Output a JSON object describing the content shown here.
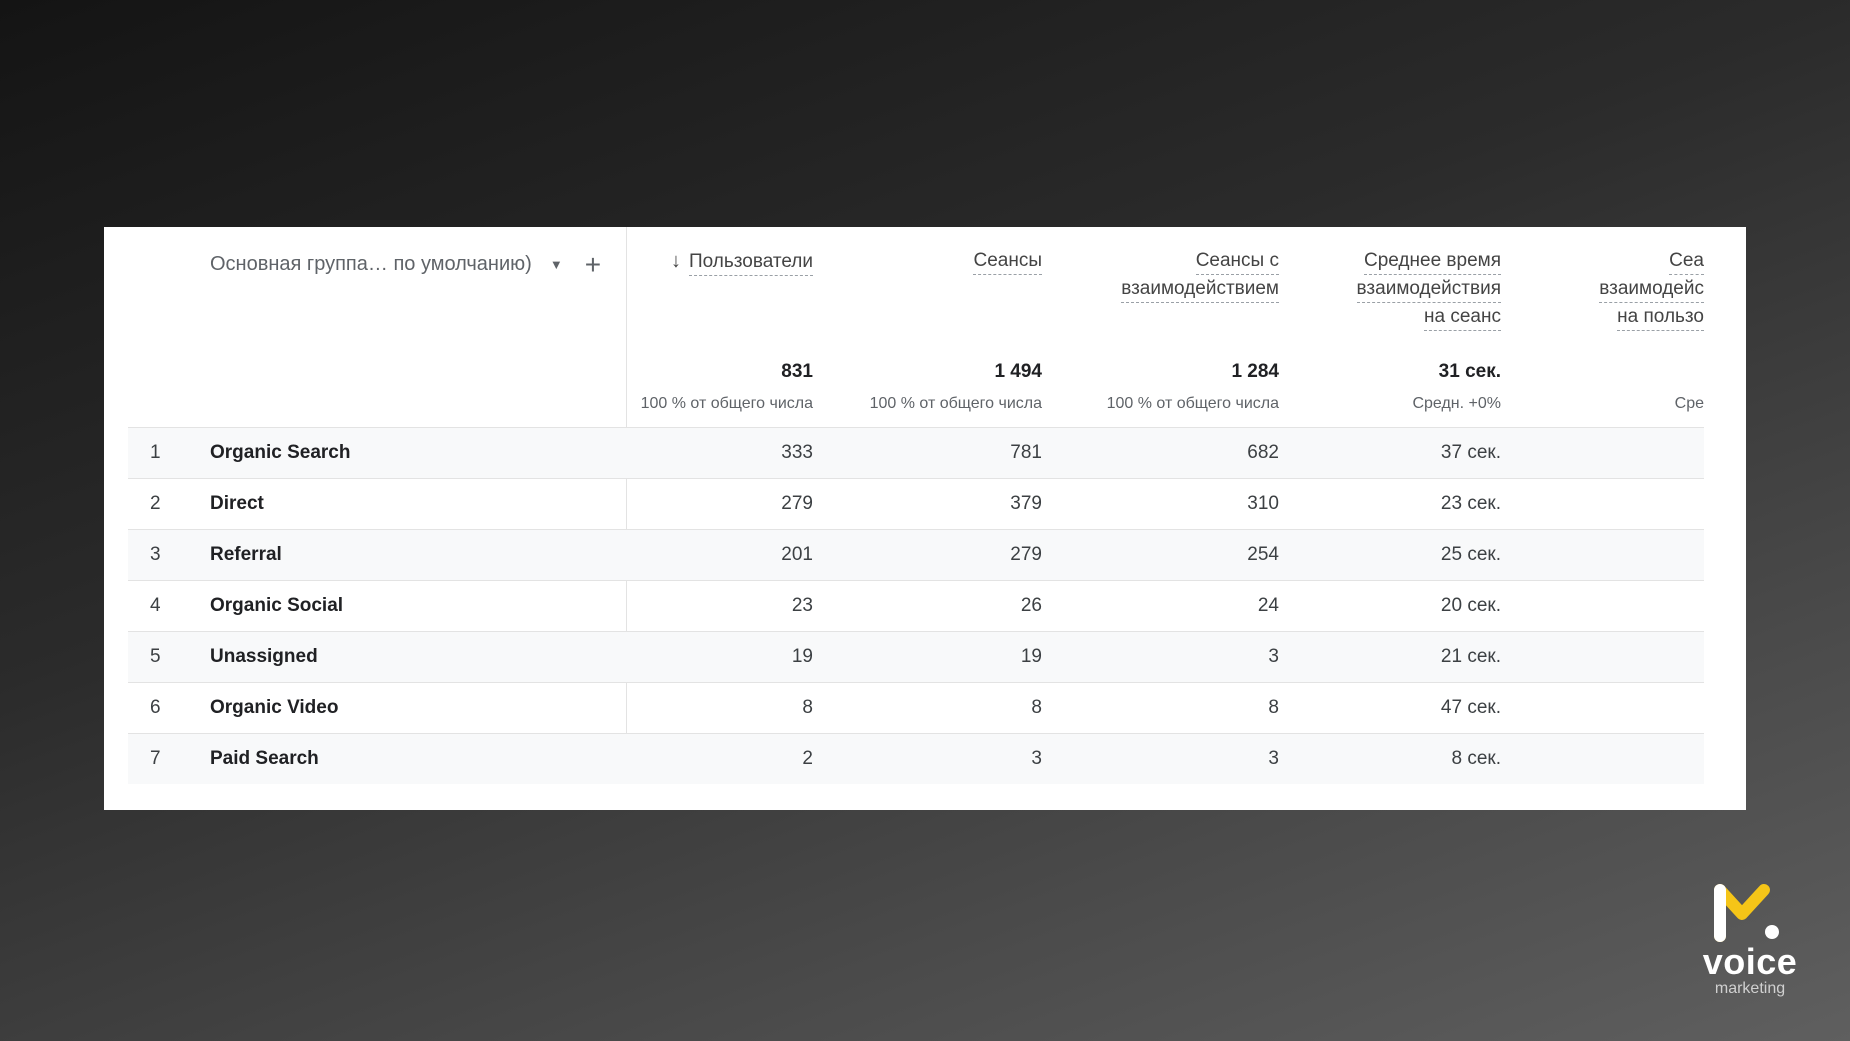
{
  "table": {
    "dimension_header": "Основная группа… по умолчанию)",
    "columns": [
      {
        "lines": [
          "Пользователи"
        ],
        "sorted_desc": true
      },
      {
        "lines": [
          "Сеансы"
        ]
      },
      {
        "lines": [
          "Сеансы с",
          "взаимодействием"
        ]
      },
      {
        "lines": [
          "Среднее время",
          "взаимодействия",
          "на сеанс"
        ]
      },
      {
        "lines": [
          "Сеа",
          "взаимодейс",
          "на пользо"
        ]
      }
    ],
    "totals": [
      {
        "value": "831",
        "sub": "100 % от общего числа"
      },
      {
        "value": "1 494",
        "sub": "100 % от общего числа"
      },
      {
        "value": "1 284",
        "sub": "100 % от общего числа"
      },
      {
        "value": "31 сек.",
        "sub": "Средн. +0%"
      },
      {
        "value": "",
        "sub": "Сре"
      }
    ],
    "rows": [
      {
        "num": "1",
        "name": "Organic Search",
        "values": [
          "333",
          "781",
          "682",
          "37 сек."
        ]
      },
      {
        "num": "2",
        "name": "Direct",
        "values": [
          "279",
          "379",
          "310",
          "23 сек."
        ]
      },
      {
        "num": "3",
        "name": "Referral",
        "values": [
          "201",
          "279",
          "254",
          "25 сек."
        ]
      },
      {
        "num": "4",
        "name": "Organic Social",
        "values": [
          "23",
          "26",
          "24",
          "20 сек."
        ]
      },
      {
        "num": "5",
        "name": "Unassigned",
        "values": [
          "19",
          "19",
          "3",
          "21 сек."
        ]
      },
      {
        "num": "6",
        "name": "Organic Video",
        "values": [
          "8",
          "8",
          "8",
          "47 сек."
        ]
      },
      {
        "num": "7",
        "name": "Paid Search",
        "values": [
          "2",
          "3",
          "3",
          "8 сек."
        ]
      }
    ]
  },
  "icons": {
    "sort": "arrow-down-icon",
    "dropdown": "caret-down-icon",
    "add": "plus-icon"
  },
  "brand": {
    "word": "voice",
    "sub": "marketing",
    "accent": "#f5c518"
  }
}
